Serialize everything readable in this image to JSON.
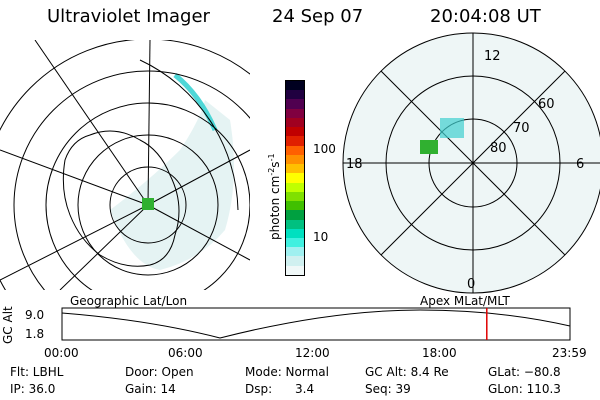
{
  "header": {
    "title": "Ultraviolet Imager",
    "date": "24 Sep 07",
    "time": "20:04:08 UT"
  },
  "colorbar": {
    "label": "photon cm",
    "label_exp": "-2",
    "label_unit2": "s",
    "label_exp2": "-1",
    "ticks": [
      "100",
      "10"
    ],
    "colors": [
      "#000020",
      "#200040",
      "#500050",
      "#800040",
      "#a00020",
      "#c00000",
      "#e02000",
      "#ff6000",
      "#ff9000",
      "#ffc000",
      "#ffff00",
      "#c0ff00",
      "#80e000",
      "#40c000",
      "#00a040",
      "#00c080",
      "#00e0c0",
      "#40f0e0",
      "#a0f0f0",
      "#d0f0f0",
      "#f0f8f8"
    ]
  },
  "geo_map": {
    "label": "Geographic Lat/Lon",
    "fill_color": "#d0ecec",
    "aurora_color": "#30d0d0",
    "peak_color": "#30b030"
  },
  "polar_map": {
    "label": "Apex MLat/MLT",
    "mlt_labels": {
      "top": "12",
      "left": "18",
      "right": "6",
      "bottom": "0"
    },
    "lat_labels": [
      "60",
      "70",
      "80"
    ]
  },
  "timeline": {
    "axis_label": "GC Alt",
    "y_ticks": [
      "9.0",
      "1.8"
    ],
    "x_ticks": [
      "00:00",
      "06:00",
      "12:00",
      "18:00",
      "23:59"
    ],
    "current_time_color": "#e00000",
    "current_fraction": 0.8362
  },
  "status": {
    "row1": [
      {
        "key": "filter",
        "text": "Flt: LBHL"
      },
      {
        "key": "door",
        "text": "Door: Open"
      },
      {
        "key": "mode",
        "text": "Mode: Normal"
      },
      {
        "key": "gc_alt",
        "text": "GC Alt: 8.4 Re"
      },
      {
        "key": "glat",
        "text": "GLat: −80.8"
      }
    ],
    "row2": [
      {
        "key": "ip",
        "text": "IP: 36.0"
      },
      {
        "key": "gain",
        "text": "Gain: 14"
      },
      {
        "key": "dsp",
        "text": "Dsp:      3.4"
      },
      {
        "key": "seq",
        "text": "Seq: 39"
      },
      {
        "key": "glon",
        "text": "GLon: 110.3"
      }
    ]
  }
}
